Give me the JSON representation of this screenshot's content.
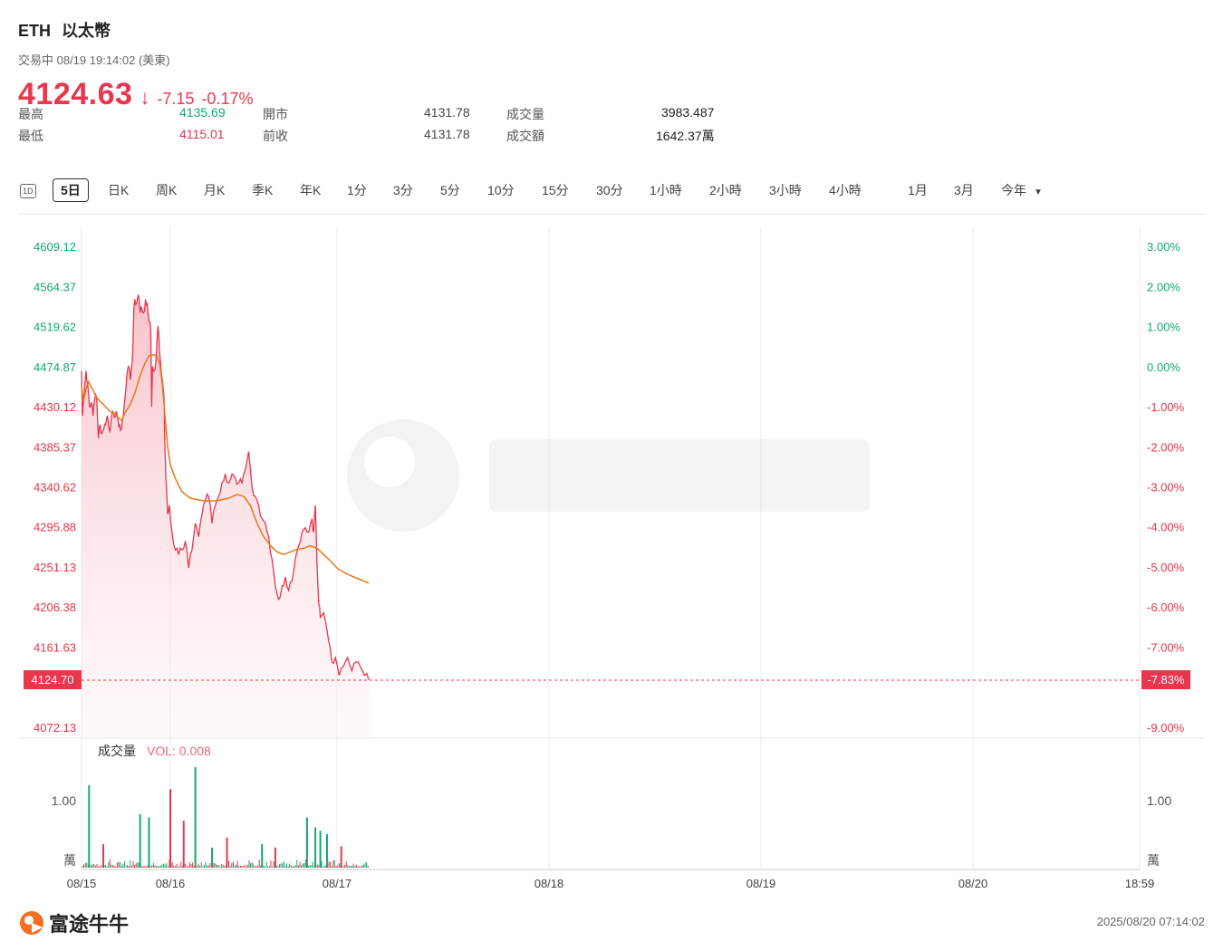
{
  "header": {
    "symbol": "ETH",
    "name": "以太幣",
    "status": "交易中 08/19 19:14:02 (美東)",
    "price": "4124.63",
    "change": "-7.15",
    "change_pct": "-0.17%"
  },
  "stats": {
    "high_label": "最高",
    "high": "4135.69",
    "low_label": "最低",
    "low": "4115.01",
    "open_label": "開市",
    "open": "4131.78",
    "prev_label": "前收",
    "prev": "4131.78",
    "vol_label": "成交量",
    "vol": "3983.487",
    "amt_label": "成交額",
    "amt": "1642.37萬"
  },
  "tabs": {
    "icon": "1D",
    "items": [
      "5日",
      "日K",
      "周K",
      "月K",
      "季K",
      "年K",
      "1分",
      "3分",
      "5分",
      "10分",
      "15分",
      "30分",
      "1小時",
      "2小時",
      "3小時",
      "4小時",
      "1月",
      "3月",
      "今年"
    ],
    "active": "5日"
  },
  "chart_data": {
    "type": "line",
    "y_ticks_left": [
      "4609.12",
      "4564.37",
      "4519.62",
      "4474.87",
      "4430.12",
      "4385.37",
      "4340.62",
      "4295.88",
      "4251.13",
      "4206.38",
      "4161.63",
      "4072.13"
    ],
    "y_ticks_right": [
      "3.00%",
      "2.00%",
      "1.00%",
      "0.00%",
      "-1.00%",
      "-2.00%",
      "-3.00%",
      "-4.00%",
      "-5.00%",
      "-6.00%",
      "-7.00%",
      "-9.00%"
    ],
    "ylim": [
      4072.13,
      4609.12
    ],
    "base_price": 4474.87,
    "current_price_label": "4124.70",
    "current_pct_label": "-7.83%",
    "current_price": 4124.7,
    "x_labels": [
      "08/15",
      "08/16",
      "08/17",
      "08/18",
      "08/19",
      "08/20",
      "18:59"
    ],
    "price_series": [
      [
        0,
        4470
      ],
      [
        0.01,
        4420
      ],
      [
        0.03,
        4445
      ],
      [
        0.05,
        4470
      ],
      [
        0.07,
        4455
      ],
      [
        0.09,
        4430
      ],
      [
        0.11,
        4435
      ],
      [
        0.13,
        4420
      ],
      [
        0.15,
        4440
      ],
      [
        0.17,
        4440
      ],
      [
        0.19,
        4395
      ],
      [
        0.21,
        4410
      ],
      [
        0.23,
        4400
      ],
      [
        0.25,
        4405
      ],
      [
        0.27,
        4410
      ],
      [
        0.29,
        4420
      ],
      [
        0.31,
        4405
      ],
      [
        0.33,
        4410
      ],
      [
        0.35,
        4425
      ],
      [
        0.37,
        4418
      ],
      [
        0.39,
        4425
      ],
      [
        0.41,
        4415
      ],
      [
        0.43,
        4410
      ],
      [
        0.45,
        4405
      ],
      [
        0.47,
        4420
      ],
      [
        0.49,
        4440
      ],
      [
        0.51,
        4465
      ],
      [
        0.53,
        4475
      ],
      [
        0.55,
        4460
      ],
      [
        0.57,
        4480
      ],
      [
        0.58,
        4500
      ],
      [
        0.59,
        4540
      ],
      [
        0.6,
        4550
      ],
      [
        0.62,
        4545
      ],
      [
        0.64,
        4555
      ],
      [
        0.66,
        4535
      ],
      [
        0.68,
        4540
      ],
      [
        0.7,
        4535
      ],
      [
        0.72,
        4550
      ],
      [
        0.74,
        4545
      ],
      [
        0.76,
        4525
      ],
      [
        0.78,
        4515
      ],
      [
        0.79,
        4430
      ],
      [
        0.8,
        4475
      ],
      [
        0.82,
        4470
      ],
      [
        0.84,
        4485
      ],
      [
        0.86,
        4520
      ],
      [
        0.87,
        4510
      ],
      [
        0.89,
        4480
      ],
      [
        0.91,
        4460
      ],
      [
        0.93,
        4440
      ],
      [
        0.94,
        4380
      ],
      [
        0.95,
        4350
      ],
      [
        0.97,
        4310
      ],
      [
        0.99,
        4320
      ],
      [
        1.01,
        4290
      ],
      [
        1.03,
        4270
      ],
      [
        1.05,
        4265
      ],
      [
        1.07,
        4270
      ],
      [
        1.09,
        4280
      ],
      [
        1.11,
        4250
      ],
      [
        1.13,
        4270
      ],
      [
        1.15,
        4300
      ],
      [
        1.17,
        4285
      ],
      [
        1.19,
        4310
      ],
      [
        1.21,
        4325
      ],
      [
        1.23,
        4330
      ],
      [
        1.25,
        4300
      ],
      [
        1.27,
        4320
      ],
      [
        1.29,
        4330
      ],
      [
        1.31,
        4345
      ],
      [
        1.33,
        4355
      ],
      [
        1.35,
        4345
      ],
      [
        1.37,
        4355
      ],
      [
        1.39,
        4350
      ],
      [
        1.41,
        4345
      ],
      [
        1.43,
        4345
      ],
      [
        1.45,
        4360
      ],
      [
        1.47,
        4380
      ],
      [
        1.49,
        4340
      ],
      [
        1.51,
        4330
      ],
      [
        1.53,
        4320
      ],
      [
        1.55,
        4305
      ],
      [
        1.57,
        4300
      ],
      [
        1.59,
        4285
      ],
      [
        1.61,
        4260
      ],
      [
        1.63,
        4230
      ],
      [
        1.65,
        4215
      ],
      [
        1.67,
        4230
      ],
      [
        1.69,
        4240
      ],
      [
        1.71,
        4225
      ],
      [
        1.73,
        4235
      ],
      [
        1.75,
        4260
      ],
      [
        1.77,
        4275
      ],
      [
        1.79,
        4290
      ],
      [
        1.81,
        4295
      ],
      [
        1.83,
        4290
      ],
      [
        1.85,
        4305
      ],
      [
        1.86,
        4290
      ],
      [
        1.87,
        4320
      ],
      [
        1.88,
        4255
      ],
      [
        1.89,
        4210
      ],
      [
        1.9,
        4195
      ],
      [
        1.92,
        4200
      ],
      [
        1.94,
        4180
      ],
      [
        1.96,
        4160
      ],
      [
        1.97,
        4145
      ],
      [
        1.99,
        4150
      ],
      [
        2.01,
        4130
      ],
      [
        2.03,
        4140
      ],
      [
        2.05,
        4150
      ],
      [
        2.07,
        4135
      ],
      [
        2.09,
        4145
      ],
      [
        2.11,
        4140
      ],
      [
        2.13,
        4130
      ],
      [
        2.15,
        4125
      ]
    ],
    "ma_series": [
      [
        0,
        4455
      ],
      [
        0.02,
        4435
      ],
      [
        0.05,
        4450
      ],
      [
        0.08,
        4458
      ],
      [
        0.12,
        4450
      ],
      [
        0.17,
        4440
      ],
      [
        0.22,
        4435
      ],
      [
        0.27,
        4430
      ],
      [
        0.32,
        4425
      ],
      [
        0.37,
        4422
      ],
      [
        0.41,
        4418
      ],
      [
        0.45,
        4415
      ],
      [
        0.5,
        4425
      ],
      [
        0.55,
        4433
      ],
      [
        0.6,
        4445
      ],
      [
        0.64,
        4458
      ],
      [
        0.68,
        4470
      ],
      [
        0.72,
        4480
      ],
      [
        0.76,
        4487
      ],
      [
        0.8,
        4488
      ],
      [
        0.85,
        4487
      ],
      [
        0.88,
        4478
      ],
      [
        0.91,
        4455
      ],
      [
        0.94,
        4420
      ],
      [
        0.97,
        4385
      ],
      [
        1.0,
        4365
      ],
      [
        1.03,
        4350
      ],
      [
        1.07,
        4335
      ],
      [
        1.12,
        4328
      ],
      [
        1.2,
        4325
      ],
      [
        1.28,
        4325
      ],
      [
        1.35,
        4328
      ],
      [
        1.4,
        4332
      ],
      [
        1.44,
        4330
      ],
      [
        1.48,
        4320
      ],
      [
        1.52,
        4300
      ],
      [
        1.56,
        4285
      ],
      [
        1.6,
        4275
      ],
      [
        1.64,
        4268
      ],
      [
        1.68,
        4265
      ],
      [
        1.72,
        4268
      ],
      [
        1.76,
        4271
      ],
      [
        1.8,
        4272
      ],
      [
        1.84,
        4275
      ],
      [
        1.88,
        4272
      ],
      [
        1.92,
        4265
      ],
      [
        1.96,
        4258
      ],
      [
        2.0,
        4250
      ],
      [
        2.04,
        4244
      ],
      [
        2.08,
        4240
      ],
      [
        2.12,
        4236
      ],
      [
        2.15,
        4233
      ]
    ],
    "volume": {
      "label": "成交量",
      "vol_text": "VOL: 0.008",
      "tick": "1.00",
      "unit": "萬",
      "spikes": [
        [
          0.085,
          1.23,
          "up"
        ],
        [
          0.245,
          0.35,
          "down"
        ],
        [
          0.66,
          0.8,
          "up"
        ],
        [
          0.76,
          0.75,
          "up"
        ],
        [
          1.0,
          1.17,
          "down"
        ],
        [
          1.08,
          0.7,
          "down"
        ],
        [
          1.15,
          1.5,
          "up"
        ],
        [
          1.25,
          0.3,
          "up"
        ],
        [
          1.34,
          0.45,
          "down"
        ],
        [
          1.55,
          0.35,
          "up"
        ],
        [
          1.63,
          0.3,
          "down"
        ],
        [
          1.82,
          0.75,
          "up"
        ],
        [
          1.87,
          0.6,
          "up"
        ],
        [
          1.9,
          0.55,
          "up"
        ],
        [
          1.94,
          0.5,
          "up"
        ],
        [
          2.02,
          0.32,
          "down"
        ]
      ]
    }
  },
  "footer": {
    "brand": "富途牛牛",
    "timestamp": "2025/08/20 07:14:02"
  },
  "colors": {
    "red": "#e8364d",
    "green": "#15a870",
    "ma": "#e47a1f"
  }
}
